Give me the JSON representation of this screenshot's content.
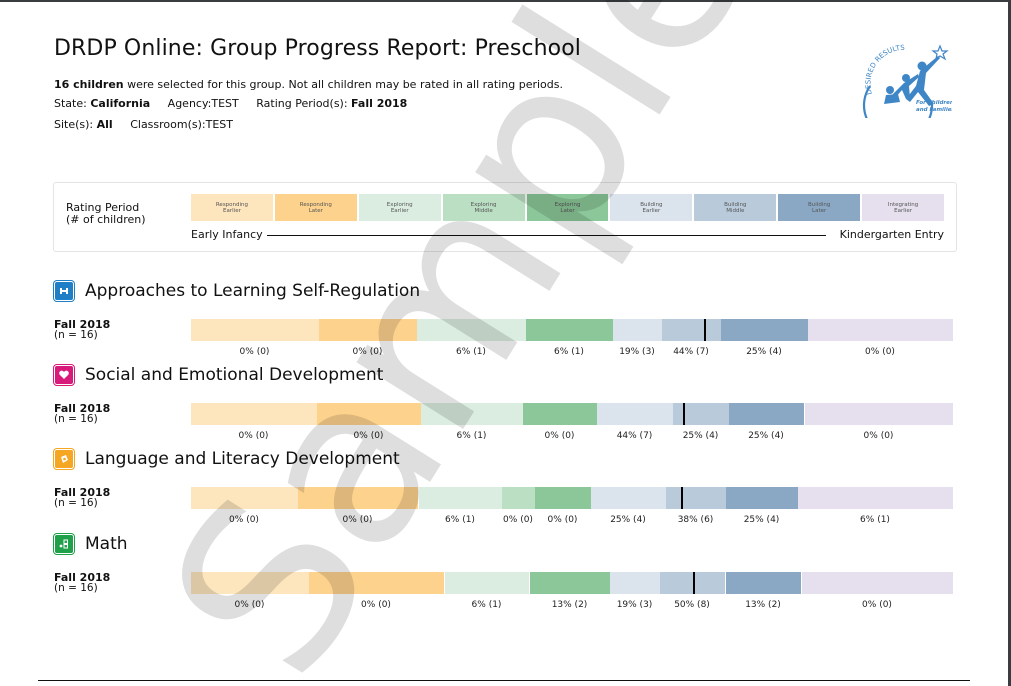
{
  "header": {
    "title": "DRDP Online: Group Progress Report: Preschool",
    "children_count": "16 children",
    "children_sentence": " were selected for this group. Not all children may be rated in all rating periods.",
    "state_label": "State: ",
    "state_value": "California",
    "agency_label": "Agency:",
    "agency_value": "TEST",
    "rating_period_label": "Rating Period(s): ",
    "rating_period_value": "Fall 2018",
    "sites_label": "Site(s): ",
    "sites_value": "All",
    "classroom_label": "Classroom(s):",
    "classroom_value": "TEST"
  },
  "logo": {
    "arc_text": "DESIRED RESULTS",
    "line1": "For Children",
    "line2": "and Families",
    "color": "#3f86c6"
  },
  "legend": {
    "label_line1": "Rating Period",
    "label_line2": "(# of children)",
    "start": "Early Infancy",
    "end": "Kindergarten Entry",
    "levels": [
      {
        "key": "RE",
        "line1": "Responding",
        "line2": "Earlier",
        "color": "#fde5bd"
      },
      {
        "key": "RL",
        "line1": "Responding",
        "line2": "Later",
        "color": "#fdd28d"
      },
      {
        "key": "EE",
        "line1": "Exploring",
        "line2": "Earlier",
        "color": "#dbede0"
      },
      {
        "key": "EM",
        "line1": "Exploring",
        "line2": "Middle",
        "color": "#badfc3"
      },
      {
        "key": "EL",
        "line1": "Exploring",
        "line2": "Later",
        "color": "#8bc798"
      },
      {
        "key": "BE",
        "line1": "Building",
        "line2": "Earlier",
        "color": "#dbe3ec"
      },
      {
        "key": "BM",
        "line1": "Building",
        "line2": "Middle",
        "color": "#b9cadb"
      },
      {
        "key": "BL",
        "line1": "Building",
        "line2": "Later",
        "color": "#8aa8c4"
      },
      {
        "key": "IE",
        "line1": "Integrating",
        "line2": "Earlier",
        "color": "#e6e0ee"
      }
    ]
  },
  "sections": [
    {
      "title": "Approaches to Learning Self-Regulation",
      "icon": "puzzle-icon",
      "icon_color": "#1f7fc6",
      "period": "Fall 2018",
      "n": "(n = 16)",
      "segments": [
        {
          "level": "RE",
          "label": "0% (0)"
        },
        {
          "level": "RL",
          "label": "0% (0)"
        },
        {
          "level": "EE",
          "label": "6% (1)"
        },
        {
          "level": "EL",
          "label": "6% (1)"
        },
        {
          "level": "BE",
          "label": "19% (3)"
        },
        {
          "level": "BM",
          "label": "44% (7)",
          "marker": true
        },
        {
          "level": "BL",
          "label": "25% (4)"
        },
        {
          "level": "IE",
          "label": "0% (0)"
        }
      ]
    },
    {
      "title": "Social and Emotional Development",
      "icon": "heart-icon",
      "icon_color": "#d81b7a",
      "period": "Fall 2018",
      "n": "(n = 16)",
      "segments": [
        {
          "level": "RE",
          "label": "0% (0)"
        },
        {
          "level": "RL",
          "label": "0% (0)"
        },
        {
          "level": "EE",
          "label": "6% (1)"
        },
        {
          "level": "EL",
          "label": "0% (0)"
        },
        {
          "level": "BE",
          "label": "44% (7)"
        },
        {
          "level": "BM",
          "label": "25% (4)",
          "marker": true
        },
        {
          "level": "BL",
          "label": "25% (4)"
        },
        {
          "level": "IE",
          "label": "0% (0)"
        }
      ]
    },
    {
      "title": "Language and Literacy Development",
      "icon": "book-icon",
      "icon_color": "#f5a623",
      "period": "Fall 2018",
      "n": "(n = 16)",
      "segments": [
        {
          "level": "RE",
          "label": "0% (0)"
        },
        {
          "level": "RL",
          "label": "0% (0)"
        },
        {
          "level": "EE",
          "label": "6% (1)"
        },
        {
          "level": "EM",
          "label": "0% (0)"
        },
        {
          "level": "EL",
          "label": "0% (0)"
        },
        {
          "level": "BE",
          "label": "25% (4)"
        },
        {
          "level": "BM",
          "label": "38% (6)",
          "marker": true
        },
        {
          "level": "BL",
          "label": "25% (4)"
        },
        {
          "level": "IE",
          "label": "6% (1)"
        }
      ]
    },
    {
      "title": "Math",
      "icon": "math-blocks-icon",
      "icon_color": "#21a04a",
      "period": "Fall 2018",
      "n": "(n = 16)",
      "segments": [
        {
          "level": "RE",
          "label": "0% (0)"
        },
        {
          "level": "RL",
          "label": "0% (0)"
        },
        {
          "level": "EE",
          "label": "6% (1)"
        },
        {
          "level": "EL",
          "label": "13% (2)"
        },
        {
          "level": "BE",
          "label": "19% (3)"
        },
        {
          "level": "BM",
          "label": "50% (8)",
          "marker": true
        },
        {
          "level": "BL",
          "label": "13% (2)"
        },
        {
          "level": "IE",
          "label": "0% (0)"
        }
      ]
    }
  ],
  "watermark": "Sample"
}
